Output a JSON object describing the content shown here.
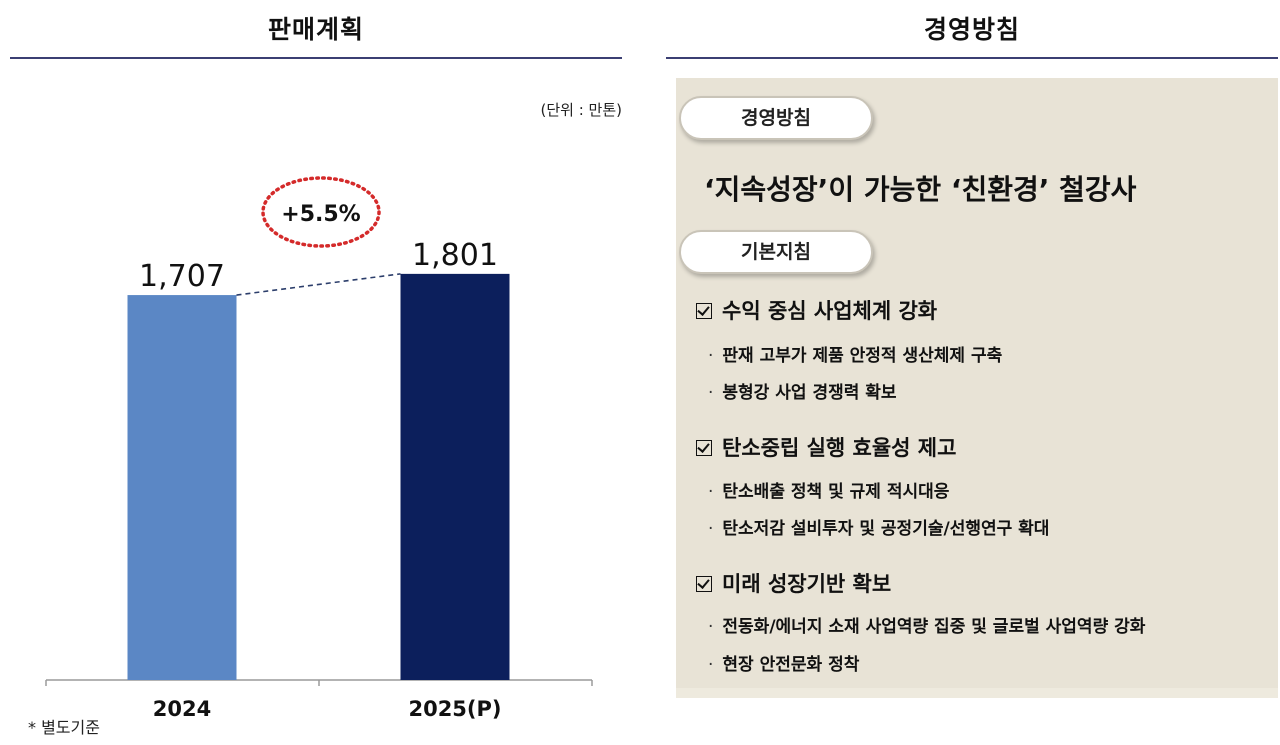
{
  "left_panel": {
    "title": "판매계획",
    "unit": "(단위 : 만톤)",
    "footnote": "* 별도기준"
  },
  "chart_data": {
    "type": "bar",
    "categories": [
      "2024",
      "2025(P)"
    ],
    "values": [
      1707,
      1801
    ],
    "value_labels": [
      "1,707",
      "1,801"
    ],
    "growth_label": "+5.5%",
    "colors": [
      "#5b87c5",
      "#0c1f5c"
    ],
    "ylim": [
      0,
      1900
    ],
    "grid": false
  },
  "right_panel": {
    "title": "경영방침",
    "policy_pill": "경영방침",
    "slogan": "‘지속성장’이 가능한 ‘친환경’ 철강사",
    "basic_pill": "기본지침",
    "sections": [
      {
        "title": "수익 중심 사업체계 강화",
        "bullets": [
          "판재 고부가 제품 안정적 생산체제 구축",
          "봉형강 사업 경쟁력 확보"
        ]
      },
      {
        "title": "탄소중립 실행 효율성 제고",
        "bullets": [
          "탄소배출 정책 및 규제 적시대응",
          "탄소저감 설비투자 및 공정기술/선행연구 확대"
        ]
      },
      {
        "title": "미래 성장기반 확보",
        "bullets": [
          "전동화/에너지 소재 사업역량 집중 및 글로벌 사업역량 강화",
          "현장 안전문화 정착"
        ]
      }
    ],
    "bullet_marker": "·"
  }
}
